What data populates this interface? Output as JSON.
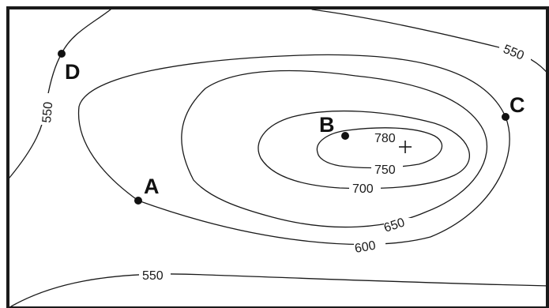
{
  "map": {
    "contour_labels": [
      "550",
      "550",
      "550",
      "600",
      "650",
      "700",
      "750"
    ],
    "summit_label": "780",
    "points": [
      {
        "id": "A",
        "label": "A"
      },
      {
        "id": "B",
        "label": "B"
      },
      {
        "id": "C",
        "label": "C"
      },
      {
        "id": "D",
        "label": "D"
      }
    ]
  }
}
